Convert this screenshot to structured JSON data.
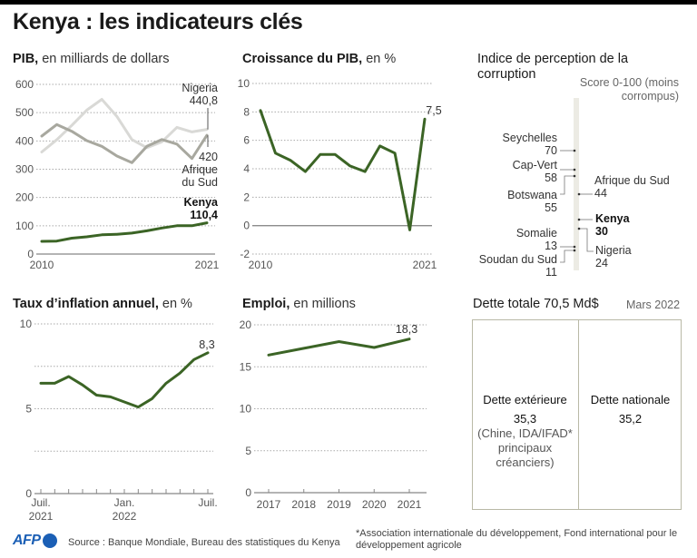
{
  "header": {
    "title": "Kenya : les indicateurs clés"
  },
  "colors": {
    "kenya": "#3b6425",
    "nigeria": "#d9d9d6",
    "south_africa": "#a8a89f",
    "cpi_bar": "#ecebe4",
    "afp_blue": "#1b5fb5"
  },
  "chart_data": [
    {
      "id": "gdp",
      "type": "line",
      "title": "PIB,",
      "subtitle": "en milliards de dollars",
      "xlabel": "",
      "ylabel": "",
      "x": [
        2010,
        2011,
        2012,
        2013,
        2014,
        2015,
        2016,
        2017,
        2018,
        2019,
        2020,
        2021
      ],
      "x_tick_labels": [
        "2010",
        "2021"
      ],
      "ylim": [
        0,
        600
      ],
      "y_ticks": [
        0,
        100,
        200,
        300,
        400,
        500,
        600
      ],
      "grid": true,
      "series": [
        {
          "name": "Nigeria",
          "values": [
            361,
            404,
            455,
            509,
            547,
            487,
            405,
            376,
            397,
            448,
            432,
            440.8
          ],
          "end_label": "440,8"
        },
        {
          "name": "Afrique du Sud",
          "values": [
            417,
            458,
            434,
            401,
            381,
            347,
            323,
            381,
            405,
            389,
            338,
            420
          ],
          "end_label": "420"
        },
        {
          "name": "Kenya",
          "values": [
            45,
            46,
            56,
            61,
            68,
            70,
            74,
            82,
            92,
            100,
            100,
            110.4
          ],
          "end_label": "110,4"
        }
      ]
    },
    {
      "id": "gdp_growth",
      "type": "line",
      "title": "Croissance du PIB,",
      "subtitle": "en %",
      "xlabel": "",
      "ylabel": "",
      "x": [
        2010,
        2011,
        2012,
        2013,
        2014,
        2015,
        2016,
        2017,
        2018,
        2019,
        2020,
        2021
      ],
      "x_tick_labels": [
        "2010",
        "2021"
      ],
      "ylim": [
        -2,
        10
      ],
      "y_ticks": [
        -2,
        0,
        2,
        4,
        6,
        8,
        10
      ],
      "grid": true,
      "series": [
        {
          "name": "Kenya",
          "values": [
            8.1,
            5.1,
            4.6,
            3.8,
            5.0,
            5.0,
            4.2,
            3.8,
            5.6,
            5.1,
            -0.3,
            7.5
          ],
          "end_label": "7,5"
        }
      ]
    },
    {
      "id": "cpi",
      "type": "scatter",
      "title": "Indice de perception de la corruption",
      "subtitle": "Score 0-100 (moins corrompus)",
      "ylim": [
        0,
        100
      ],
      "points": [
        {
          "name": "Seychelles",
          "value": 70,
          "label": "70",
          "side": "left"
        },
        {
          "name": "Cap-Vert",
          "value": 58,
          "label": "58",
          "side": "left"
        },
        {
          "name": "Botswana",
          "value": 55,
          "label": "55",
          "side": "left"
        },
        {
          "name": "Afrique du Sud",
          "value": 44,
          "label": "44",
          "side": "right"
        },
        {
          "name": "Kenya",
          "value": 30,
          "label": "30",
          "side": "right",
          "bold": true
        },
        {
          "name": "Nigeria",
          "value": 24,
          "label": "24",
          "side": "right"
        },
        {
          "name": "Somalie",
          "value": 13,
          "label": "13",
          "side": "left"
        },
        {
          "name": "Soudan du Sud",
          "value": 11,
          "label": "11",
          "side": "left"
        }
      ]
    },
    {
      "id": "inflation",
      "type": "line",
      "title": "Taux d’inflation annuel,",
      "subtitle": "en %",
      "xlabel": "",
      "ylabel": "",
      "x": [
        "2021-07",
        "2021-08",
        "2021-09",
        "2021-10",
        "2021-11",
        "2021-12",
        "2022-01",
        "2022-02",
        "2022-03",
        "2022-04",
        "2022-05",
        "2022-06",
        "2022-07"
      ],
      "x_tick_labels": [
        {
          "at": 0,
          "line1": "Juil.",
          "line2": "2021"
        },
        {
          "at": 6,
          "line1": "Jan.",
          "line2": "2022"
        },
        {
          "at": 12,
          "line1": "Juil.",
          "line2": ""
        }
      ],
      "ylim": [
        0,
        10
      ],
      "y_ticks": [
        0,
        5,
        10
      ],
      "y_tick_labels": [
        "0",
        "5",
        "10"
      ],
      "grid_lines": [
        2.5,
        5,
        7.5,
        10
      ],
      "grid": true,
      "series": [
        {
          "name": "Kenya",
          "values": [
            6.5,
            6.5,
            6.9,
            6.4,
            5.8,
            5.7,
            5.4,
            5.1,
            5.6,
            6.5,
            7.1,
            7.9,
            8.3
          ],
          "end_label": "8,3"
        }
      ]
    },
    {
      "id": "employment",
      "type": "line",
      "title": "Emploi,",
      "subtitle": "en millions",
      "xlabel": "",
      "ylabel": "",
      "x": [
        2017,
        2018,
        2019,
        2020,
        2021
      ],
      "x_tick_labels": [
        "2017",
        "2018",
        "2019",
        "2020",
        "2021"
      ],
      "ylim": [
        0,
        20
      ],
      "y_ticks": [
        0,
        5,
        10,
        15,
        20
      ],
      "grid": true,
      "series": [
        {
          "name": "Kenya",
          "values": [
            16.4,
            17.2,
            18.0,
            17.3,
            18.3
          ],
          "end_label": "18,3"
        }
      ]
    }
  ],
  "debt": {
    "title": "Dette totale 70,5 Md$",
    "date": "Mars 2022",
    "external": {
      "name": "Dette extérieure",
      "value": "35,3",
      "note_lines": [
        "(Chine, IDA/IFAD*",
        "principaux",
        "créanciers)"
      ],
      "amount": 35.3
    },
    "domestic": {
      "name": "Dette nationale",
      "value": "35,2",
      "amount": 35.2
    }
  },
  "footer": {
    "logo": "AFP",
    "source": "Source : Banque Mondiale, Bureau des statistiques du Kenya",
    "footnote": "*Association internationale du développement, Fond international pour le développement agricole"
  }
}
